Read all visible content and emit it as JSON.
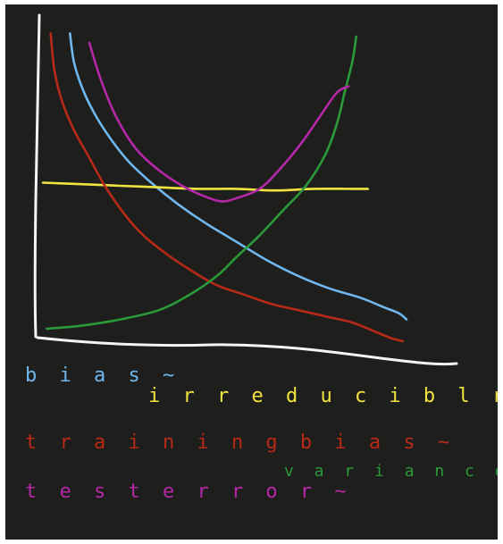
{
  "chart_data": {
    "type": "line",
    "title": "",
    "xlabel": "",
    "ylabel": "",
    "xlim": [
      0,
      100
    ],
    "ylim": [
      0,
      100
    ],
    "grid": false,
    "legend_position": "bottom",
    "series": [
      {
        "name": "bias",
        "color": "#6fb7ee",
        "x": [
          7,
          8,
          10,
          13,
          17,
          22,
          28,
          35,
          42,
          50,
          58,
          66,
          74,
          82,
          88,
          92,
          94
        ],
        "y": [
          97,
          88,
          80,
          72,
          64,
          56,
          49,
          42,
          36,
          30,
          24,
          19,
          15,
          12,
          9,
          7,
          5
        ]
      },
      {
        "name": "irreducible error",
        "color": "#f1e441",
        "x": [
          0,
          10,
          20,
          30,
          40,
          50,
          60,
          70,
          80,
          84
        ],
        "y": [
          49,
          48.5,
          48,
          47.5,
          47,
          47,
          46.5,
          47,
          47,
          47
        ]
      },
      {
        "name": "training bias",
        "color": "#b82a18",
        "x": [
          2,
          3,
          5,
          8,
          12,
          16,
          21,
          26,
          32,
          38,
          45,
          52,
          59,
          66,
          73,
          80,
          86,
          90,
          93
        ],
        "y": [
          97,
          85,
          75,
          66,
          57,
          48,
          39,
          32,
          26,
          21,
          16,
          13,
          10,
          8,
          6,
          4,
          1,
          -1,
          -2
        ]
      },
      {
        "name": "variance",
        "color": "#2a9a3a",
        "x": [
          1,
          10,
          20,
          30,
          38,
          45,
          50,
          56,
          62,
          68,
          73,
          76,
          78,
          80,
          81
        ],
        "y": [
          2,
          3,
          5,
          8,
          13,
          19,
          25,
          32,
          40,
          48,
          58,
          68,
          78,
          88,
          96
        ]
      },
      {
        "name": "test error",
        "color": "#b428a8",
        "x": [
          12,
          15,
          19,
          24,
          30,
          36,
          41,
          46,
          50,
          56,
          61,
          67,
          72,
          76,
          79
        ],
        "y": [
          94,
          82,
          70,
          60,
          53,
          48,
          45,
          43,
          44,
          47,
          53,
          62,
          71,
          78,
          80
        ]
      }
    ],
    "legend": [
      {
        "series": "bias",
        "text": "b i a s ~"
      },
      {
        "series": "irreducible error",
        "text": "i r r e d u c i b l r   e r r o r ~"
      },
      {
        "series": "training bias",
        "text": "t r a i n i n g  b i a s ~"
      },
      {
        "series": "variance",
        "text": "v a r i a n c e ~"
      },
      {
        "series": "test error",
        "text": "t e s t  e r r o r ~"
      }
    ]
  }
}
